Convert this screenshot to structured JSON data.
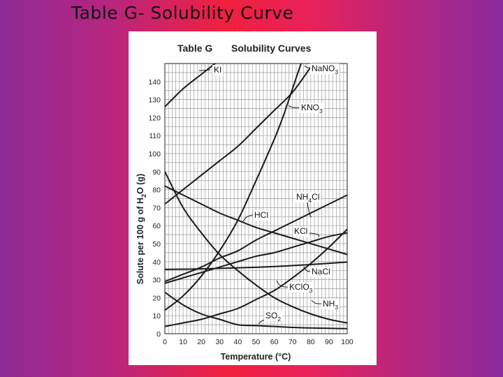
{
  "slide": {
    "title": "Table G- Solubility Curve"
  },
  "chart_data": {
    "type": "line",
    "title": "Solubility Curves",
    "table_label": "Table G",
    "xlabel": "Temperature (°C)",
    "ylabel": "Solute per 100 g of H2O (g)",
    "ylabel_parts": [
      "Solute per 100 g of H",
      "2",
      "O (g)"
    ],
    "xlim": [
      0,
      100
    ],
    "ylim": [
      0,
      150
    ],
    "x_ticks": [
      0,
      10,
      20,
      30,
      40,
      50,
      60,
      70,
      80,
      90,
      100
    ],
    "y_ticks": [
      0,
      10,
      20,
      30,
      40,
      50,
      60,
      70,
      80,
      90,
      100,
      110,
      120,
      130,
      140
    ],
    "grid": true,
    "series": [
      {
        "name": "KI",
        "label": "KI",
        "sub": "",
        "points": [
          [
            0,
            126
          ],
          [
            10,
            136
          ],
          [
            20,
            144
          ],
          [
            25,
            148
          ],
          [
            30,
            152
          ]
        ]
      },
      {
        "name": "NaNO3",
        "label": "NaNO",
        "sub": "3",
        "points": [
          [
            0,
            72
          ],
          [
            10,
            80
          ],
          [
            20,
            88
          ],
          [
            30,
            96
          ],
          [
            40,
            104
          ],
          [
            50,
            114
          ],
          [
            60,
            124
          ],
          [
            70,
            134
          ],
          [
            80,
            148
          ]
        ]
      },
      {
        "name": "KNO3",
        "label": "KNO",
        "sub": "3",
        "points": [
          [
            0,
            13
          ],
          [
            10,
            21
          ],
          [
            20,
            32
          ],
          [
            30,
            46
          ],
          [
            40,
            63
          ],
          [
            50,
            85
          ],
          [
            60,
            108
          ],
          [
            65,
            121
          ],
          [
            70,
            136
          ],
          [
            75,
            151
          ]
        ]
      },
      {
        "name": "NH4Cl",
        "label": "NH",
        "sub": "4",
        "label_tail": "Cl",
        "points": [
          [
            0,
            29
          ],
          [
            10,
            33
          ],
          [
            20,
            37
          ],
          [
            30,
            42
          ],
          [
            40,
            46
          ],
          [
            50,
            52
          ],
          [
            60,
            57
          ],
          [
            70,
            62
          ],
          [
            80,
            67
          ],
          [
            90,
            72
          ],
          [
            100,
            77
          ]
        ]
      },
      {
        "name": "HCl",
        "label": "HCl",
        "sub": "",
        "points": [
          [
            0,
            82
          ],
          [
            10,
            77
          ],
          [
            20,
            72
          ],
          [
            30,
            67
          ],
          [
            40,
            63
          ],
          [
            50,
            59
          ],
          [
            60,
            56
          ],
          [
            70,
            53
          ],
          [
            80,
            50
          ],
          [
            90,
            47
          ],
          [
            100,
            44
          ]
        ]
      },
      {
        "name": "KCl",
        "label": "KCl",
        "sub": "",
        "points": [
          [
            0,
            28
          ],
          [
            10,
            31
          ],
          [
            20,
            34
          ],
          [
            30,
            37
          ],
          [
            40,
            40
          ],
          [
            50,
            43
          ],
          [
            60,
            45
          ],
          [
            70,
            48
          ],
          [
            80,
            51
          ],
          [
            90,
            54
          ],
          [
            100,
            56
          ]
        ]
      },
      {
        "name": "NaCl",
        "label": "NaCl",
        "sub": "",
        "points": [
          [
            0,
            35.7
          ],
          [
            20,
            36
          ],
          [
            40,
            36.6
          ],
          [
            60,
            37.3
          ],
          [
            80,
            38.4
          ],
          [
            100,
            39.8
          ]
        ]
      },
      {
        "name": "KClO3",
        "label": "KClO",
        "sub": "3",
        "points": [
          [
            0,
            4
          ],
          [
            10,
            6
          ],
          [
            20,
            8
          ],
          [
            30,
            11
          ],
          [
            40,
            14
          ],
          [
            50,
            19
          ],
          [
            60,
            24
          ],
          [
            70,
            31
          ],
          [
            80,
            39
          ],
          [
            90,
            48
          ],
          [
            100,
            58
          ]
        ]
      },
      {
        "name": "NH3",
        "label": "NH",
        "sub": "3",
        "points": [
          [
            0,
            90
          ],
          [
            10,
            70
          ],
          [
            20,
            56
          ],
          [
            30,
            44
          ],
          [
            40,
            35
          ],
          [
            50,
            27
          ],
          [
            60,
            20
          ],
          [
            70,
            15
          ],
          [
            80,
            11
          ],
          [
            90,
            8
          ],
          [
            100,
            6
          ]
        ]
      },
      {
        "name": "SO2",
        "label": "SO",
        "sub": "2",
        "points": [
          [
            0,
            23
          ],
          [
            10,
            16
          ],
          [
            20,
            11
          ],
          [
            30,
            8
          ],
          [
            40,
            5
          ],
          [
            50,
            4.5
          ],
          [
            60,
            4
          ],
          [
            70,
            3.5
          ],
          [
            80,
            3.2
          ],
          [
            90,
            3
          ],
          [
            100,
            2.8
          ]
        ]
      }
    ]
  }
}
